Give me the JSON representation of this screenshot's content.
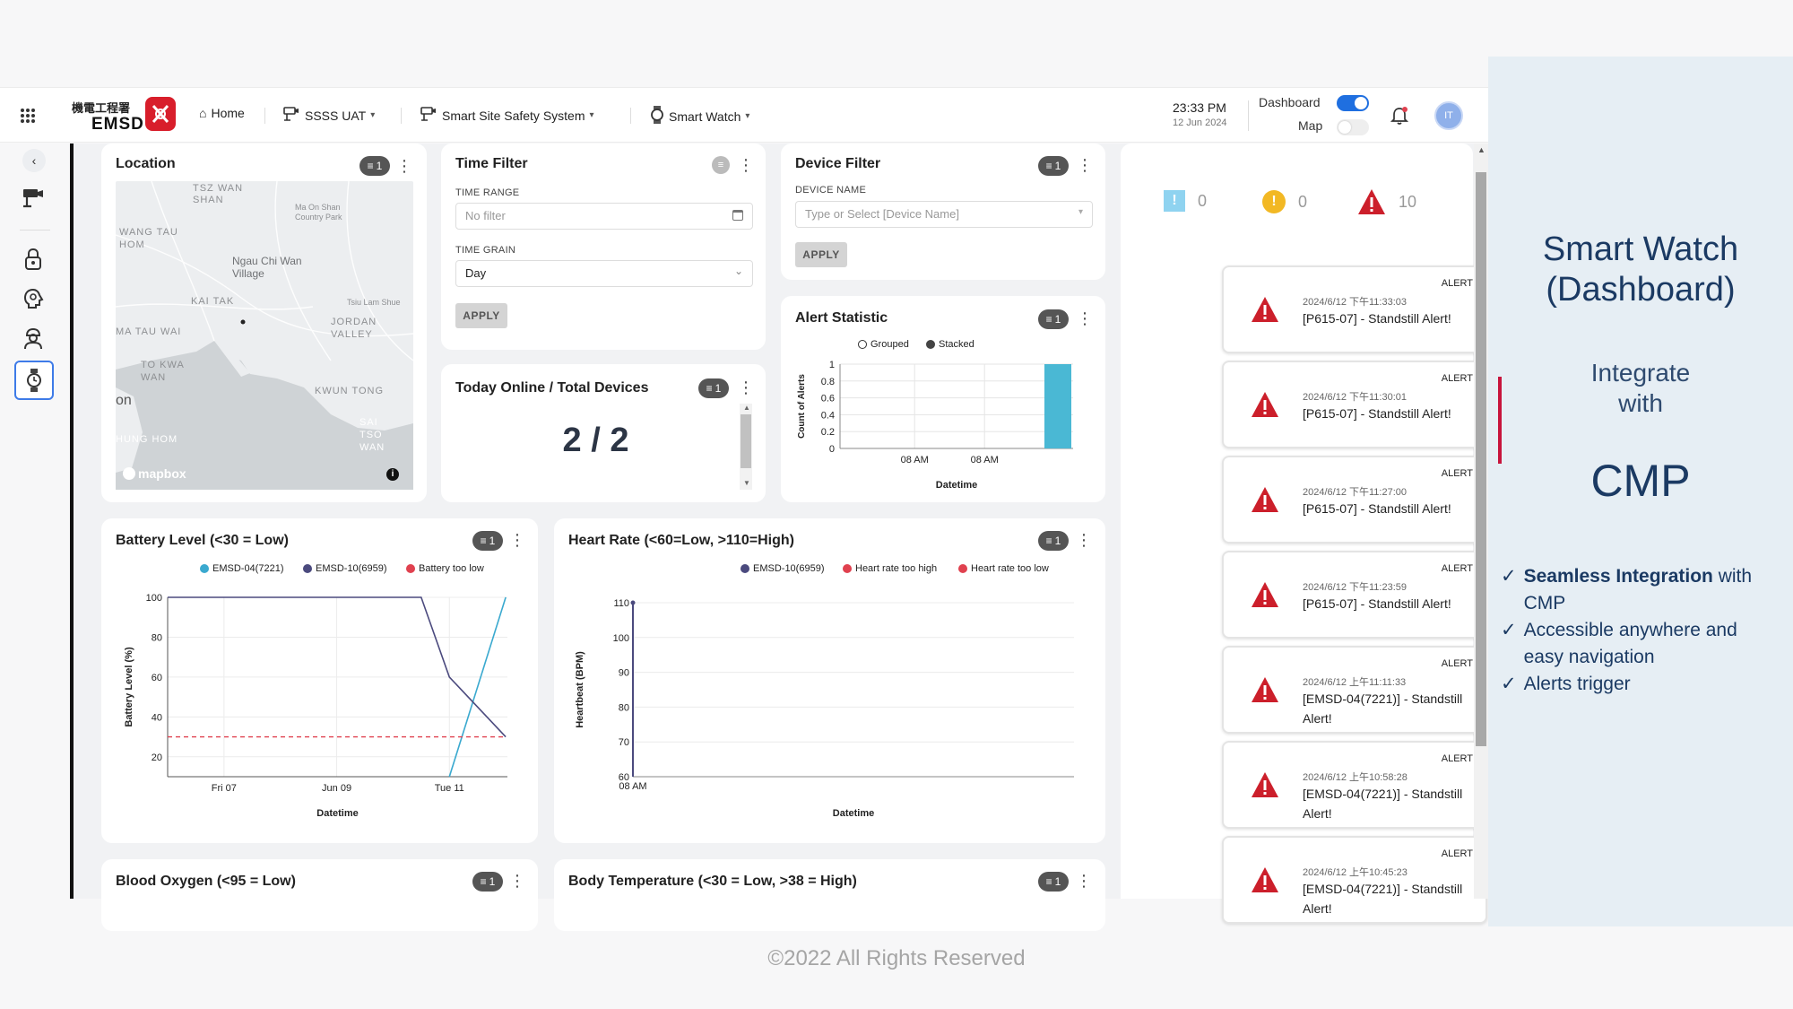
{
  "nav": {
    "logo_chinese": "機電工程署",
    "logo_english": "EMSD",
    "home": "Home",
    "project": "SSSS UAT",
    "system": "Smart Site Safety System",
    "module": "Smart Watch",
    "time": "23:33 PM",
    "date": "12 Jun 2024",
    "dashboard_label": "Dashboard",
    "map_label": "Map",
    "avatar_initials": "IT"
  },
  "location_card": {
    "title": "Location",
    "badge": "1",
    "map_labels": [
      "TSZ WAN SHAN",
      "Ma On Shan Country Park",
      "WANG TAU HOM",
      "Ngau Chi Wan Village",
      "KAI TAK",
      "Tsiu Lam Shue",
      "JORDAN VALLEY",
      "MA TAU WAI",
      "TO KWA WAN",
      "on",
      "KWUN TONG",
      "SAI TSO WAN",
      "HUNG HOM"
    ],
    "map_brand": "mapbox"
  },
  "time_filter": {
    "title": "Time Filter",
    "range_label": "TIME RANGE",
    "range_placeholder": "No filter",
    "grain_label": "TIME GRAIN",
    "grain_value": "Day",
    "apply": "APPLY"
  },
  "device_filter": {
    "title": "Device Filter",
    "badge": "1",
    "name_label": "DEVICE NAME",
    "name_placeholder": "Type or Select [Device Name]",
    "apply": "APPLY"
  },
  "online_card": {
    "title": "Today Online / Total Devices",
    "badge": "1",
    "value": "2 / 2"
  },
  "alert_statistic": {
    "title": "Alert Statistic",
    "badge": "1",
    "option_grouped": "Grouped",
    "option_stacked": "Stacked"
  },
  "alert_counts": {
    "info": "0",
    "warning": "0",
    "critical": "10"
  },
  "battery_card": {
    "title": "Battery Level (<30 = Low)",
    "badge": "1"
  },
  "heart_card": {
    "title": "Heart Rate (<60=Low, >110=High)",
    "badge": "1"
  },
  "oxygen_card": {
    "title": "Blood Oxygen (<95 = Low)",
    "badge": "1"
  },
  "temp_card": {
    "title": "Body Temperature (<30 = Low, >38 = High)",
    "badge": "1"
  },
  "chart_data": [
    {
      "id": "alert_statistic",
      "type": "bar",
      "xlabel": "Datetime",
      "ylabel": "Count of Alerts",
      "ylim": [
        0,
        1
      ],
      "yticks": [
        "0",
        "0.2",
        "0.4",
        "0.6",
        "0.8",
        "1"
      ],
      "xticks": [
        "08 AM",
        "08 AM"
      ],
      "series": [
        {
          "values": [
            1
          ]
        }
      ],
      "color": "#4ab8d4"
    },
    {
      "id": "battery",
      "type": "line",
      "xlabel": "Datetime",
      "ylabel": "Battery Level (%)",
      "ylim": [
        10,
        100
      ],
      "yticks": [
        "100",
        "80",
        "60",
        "40",
        "20"
      ],
      "xticks": [
        "Fri 07",
        "Jun 09",
        "Tue 11"
      ],
      "x_range": [
        "Jun 06",
        "Jun 12"
      ],
      "series": [
        {
          "name": "EMSD-04(7221)",
          "color": "#3aa9cf",
          "points": [
            [
              "Jun 11 00:00",
              10
            ],
            [
              "Jun 12 00:00",
              100
            ]
          ]
        },
        {
          "name": "EMSD-10(6959)",
          "color": "#4b4a7e",
          "points": [
            [
              "Jun 06 00:00",
              100
            ],
            [
              "Jun 10 12:00",
              100
            ],
            [
              "Jun 11 00:00",
              60
            ],
            [
              "Jun 12 00:00",
              30
            ]
          ]
        },
        {
          "name": "Battery too low",
          "color": "#e0414f",
          "points": [
            [
              "Jun 06 00:00",
              30
            ],
            [
              "Jun 12 00:00",
              30
            ]
          ],
          "style": "dashed"
        }
      ]
    },
    {
      "id": "heart_rate",
      "type": "line",
      "xlabel": "Datetime",
      "ylabel": "Heartbeat (BPM)",
      "ylim": [
        60,
        110
      ],
      "yticks": [
        "110",
        "100",
        "90",
        "80",
        "70",
        "60"
      ],
      "xticks": [
        "08 AM"
      ],
      "series": [
        {
          "name": "EMSD-10(6959)",
          "color": "#4b4a7e",
          "points": [
            [
              "08 AM",
              110
            ],
            [
              "08 AM",
              60
            ]
          ]
        },
        {
          "name": "Heart rate too high",
          "color": "#e0414f",
          "points": []
        },
        {
          "name": "Heart rate too low",
          "color": "#e0414f",
          "points": []
        }
      ]
    }
  ],
  "alerts": [
    {
      "tag": "ALERT",
      "time": "2024/6/12 下午11:33:03",
      "message": "[P615-07] - Standstill Alert!"
    },
    {
      "tag": "ALERT",
      "time": "2024/6/12 下午11:30:01",
      "message": "[P615-07] - Standstill Alert!"
    },
    {
      "tag": "ALERT",
      "time": "2024/6/12 下午11:27:00",
      "message": "[P615-07] - Standstill Alert!"
    },
    {
      "tag": "ALERT",
      "time": "2024/6/12 下午11:23:59",
      "message": "[P615-07] - Standstill Alert!"
    },
    {
      "tag": "ALERT",
      "time": "2024/6/12 上午11:11:33",
      "message": "[EMSD-04(7221)] - Standstill Alert!"
    },
    {
      "tag": "ALERT",
      "time": "2024/6/12 上午10:58:28",
      "message": "[EMSD-04(7221)] - Standstill Alert!"
    },
    {
      "tag": "ALERT",
      "time": "2024/6/12 上午10:45:23",
      "message": "[EMSD-04(7221)] - Standstill Alert!"
    }
  ],
  "right_panel": {
    "title_line1": "Smart Watch",
    "title_line2": "(Dashboard)",
    "integrate_line1": "Integrate",
    "integrate_line2": "with",
    "cmp": "CMP",
    "bullet1_bold": "Seamless Integration",
    "bullet1_rest": " with CMP",
    "bullet2": "Accessible anywhere and easy navigation",
    "bullet3": "Alerts trigger"
  },
  "footer": "©2022 All Rights Reserved",
  "colors": {
    "accent": "#1f6fe0",
    "alert_red": "#cc1f2b",
    "warning_yellow": "#f2b824",
    "info_blue": "#8fd3f0",
    "panel_blue": "#1b3a63"
  }
}
